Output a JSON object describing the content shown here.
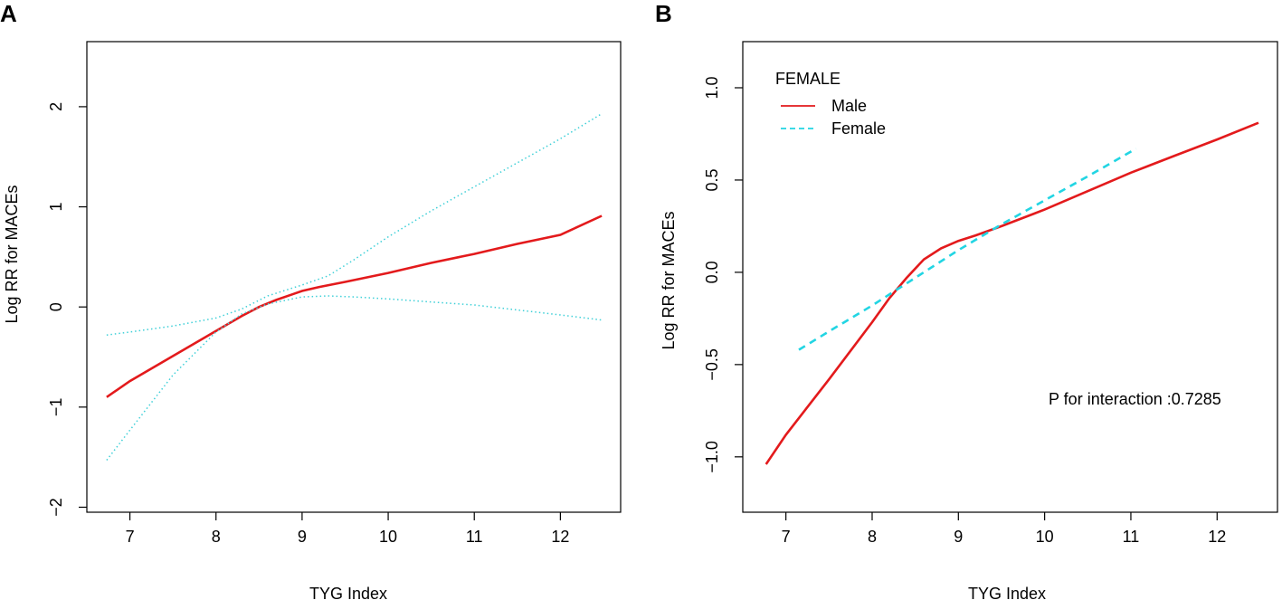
{
  "chart_data": [
    {
      "panel": "A",
      "type": "line",
      "title": "",
      "xlabel": "TYG Index",
      "ylabel": "Log RR for MACEs",
      "xlim": [
        6.5,
        12.7
      ],
      "ylim": [
        -2.05,
        2.65
      ],
      "xticks": [
        7,
        8,
        9,
        10,
        11,
        12
      ],
      "xtick_labels": [
        "7",
        "8",
        "9",
        "10",
        "11",
        "12"
      ],
      "yticks": [
        -2,
        -1,
        0,
        1,
        2
      ],
      "ytick_labels": [
        "−2",
        "−1",
        "0",
        "1",
        "2"
      ],
      "series": [
        {
          "name": "estimate",
          "style": "solid",
          "color": "#e31a1c",
          "x": [
            6.73,
            7.0,
            7.5,
            8.0,
            8.3,
            8.5,
            8.7,
            8.9,
            9.0,
            9.2,
            9.5,
            10.0,
            10.5,
            11.0,
            11.5,
            12.0,
            12.48
          ],
          "y": [
            -0.9,
            -0.74,
            -0.49,
            -0.24,
            -0.09,
            0.0,
            0.07,
            0.13,
            0.16,
            0.2,
            0.25,
            0.34,
            0.44,
            0.53,
            0.63,
            0.72,
            0.91
          ]
        },
        {
          "name": "upper CI",
          "style": "dotted",
          "color": "#3fd0d8",
          "x": [
            6.73,
            7.0,
            7.5,
            8.0,
            8.3,
            8.6,
            9.0,
            9.3,
            9.6,
            10.0,
            10.5,
            11.0,
            11.5,
            12.0,
            12.48
          ],
          "y": [
            -0.28,
            -0.25,
            -0.19,
            -0.11,
            -0.02,
            0.11,
            0.22,
            0.31,
            0.47,
            0.7,
            0.96,
            1.2,
            1.44,
            1.68,
            1.93
          ]
        },
        {
          "name": "lower CI",
          "style": "dotted",
          "color": "#3fd0d8",
          "x": [
            6.73,
            7.0,
            7.5,
            8.0,
            8.3,
            8.6,
            9.0,
            9.3,
            9.6,
            10.0,
            10.5,
            11.0,
            11.5,
            12.0,
            12.48
          ],
          "y": [
            -1.53,
            -1.23,
            -0.68,
            -0.25,
            -0.07,
            0.03,
            0.1,
            0.11,
            0.1,
            0.08,
            0.05,
            0.02,
            -0.03,
            -0.08,
            -0.13
          ]
        }
      ]
    },
    {
      "panel": "B",
      "type": "line",
      "title": "",
      "xlabel": "TYG Index",
      "ylabel": "Log RR for MACEs",
      "xlim": [
        6.5,
        12.7
      ],
      "ylim": [
        -1.3,
        1.25
      ],
      "xticks": [
        7,
        8,
        9,
        10,
        11,
        12
      ],
      "xtick_labels": [
        "7",
        "8",
        "9",
        "10",
        "11",
        "12"
      ],
      "yticks": [
        -1.0,
        -0.5,
        0.0,
        0.5,
        1.0
      ],
      "ytick_labels": [
        "−1.0",
        "−0.5",
        "0.0",
        "0.5",
        "1.0"
      ],
      "legend": {
        "title": "FEMALE",
        "position": "top-left",
        "entries": [
          {
            "label": "Male",
            "style": "solid",
            "color": "#e31a1c"
          },
          {
            "label": "Female",
            "style": "dashed",
            "color": "#22d5e3"
          }
        ]
      },
      "annotation": "P for interaction :0.7285",
      "series": [
        {
          "name": "Male",
          "style": "solid",
          "color": "#e31a1c",
          "x": [
            6.77,
            7.0,
            7.5,
            8.0,
            8.2,
            8.4,
            8.6,
            8.8,
            9.0,
            9.2,
            9.5,
            10.0,
            10.5,
            11.0,
            11.5,
            12.0,
            12.48
          ],
          "y": [
            -1.04,
            -0.88,
            -0.58,
            -0.27,
            -0.14,
            -0.03,
            0.07,
            0.13,
            0.17,
            0.2,
            0.25,
            0.34,
            0.44,
            0.54,
            0.63,
            0.72,
            0.81
          ]
        },
        {
          "name": "Female",
          "style": "dashed",
          "color": "#22d5e3",
          "x": [
            7.15,
            7.5,
            8.0,
            8.5,
            9.0,
            9.5,
            10.0,
            10.5,
            11.06
          ],
          "y": [
            -0.42,
            -0.32,
            -0.18,
            -0.03,
            0.12,
            0.26,
            0.39,
            0.52,
            0.67
          ]
        }
      ]
    }
  ]
}
